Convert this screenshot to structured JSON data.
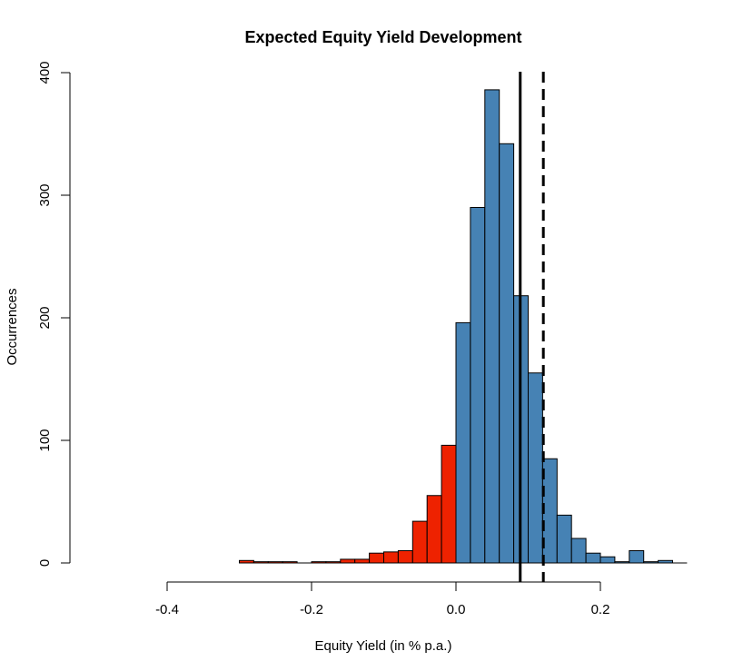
{
  "chart_data": {
    "type": "bar",
    "title": "Expected Equity Yield Development",
    "xlabel": "Equity Yield (in % p.a.)",
    "ylabel": "Occurrences",
    "xlim": [
      -0.5,
      0.33
    ],
    "ylim": [
      0,
      400
    ],
    "x_ticks": [
      -0.4,
      -0.2,
      0.0,
      0.2
    ],
    "x_tick_labels": [
      "-0.4",
      "-0.2",
      "0.0",
      "0.2"
    ],
    "y_ticks": [
      0,
      100,
      200,
      300,
      400
    ],
    "y_tick_labels": [
      "0",
      "100",
      "200",
      "300",
      "400"
    ],
    "bin_width": 0.02,
    "bins": [
      {
        "start": -0.3,
        "end": -0.28,
        "count": 2
      },
      {
        "start": -0.28,
        "end": -0.26,
        "count": 1
      },
      {
        "start": -0.26,
        "end": -0.24,
        "count": 1
      },
      {
        "start": -0.24,
        "end": -0.22,
        "count": 1
      },
      {
        "start": -0.22,
        "end": -0.2,
        "count": 0
      },
      {
        "start": -0.2,
        "end": -0.18,
        "count": 1
      },
      {
        "start": -0.18,
        "end": -0.16,
        "count": 1
      },
      {
        "start": -0.16,
        "end": -0.14,
        "count": 3
      },
      {
        "start": -0.14,
        "end": -0.12,
        "count": 3
      },
      {
        "start": -0.12,
        "end": -0.1,
        "count": 8
      },
      {
        "start": -0.1,
        "end": -0.08,
        "count": 9
      },
      {
        "start": -0.08,
        "end": -0.06,
        "count": 10
      },
      {
        "start": -0.06,
        "end": -0.04,
        "count": 34
      },
      {
        "start": -0.04,
        "end": -0.02,
        "count": 55
      },
      {
        "start": -0.02,
        "end": 0.0,
        "count": 96
      },
      {
        "start": 0.0,
        "end": 0.02,
        "count": 196
      },
      {
        "start": 0.02,
        "end": 0.04,
        "count": 290
      },
      {
        "start": 0.04,
        "end": 0.06,
        "count": 386
      },
      {
        "start": 0.06,
        "end": 0.08,
        "count": 342
      },
      {
        "start": 0.08,
        "end": 0.1,
        "count": 218
      },
      {
        "start": 0.1,
        "end": 0.12,
        "count": 155
      },
      {
        "start": 0.12,
        "end": 0.14,
        "count": 85
      },
      {
        "start": 0.14,
        "end": 0.16,
        "count": 39
      },
      {
        "start": 0.16,
        "end": 0.18,
        "count": 20
      },
      {
        "start": 0.18,
        "end": 0.2,
        "count": 8
      },
      {
        "start": 0.2,
        "end": 0.22,
        "count": 5
      },
      {
        "start": 0.22,
        "end": 0.24,
        "count": 1
      },
      {
        "start": 0.24,
        "end": 0.26,
        "count": 10
      },
      {
        "start": 0.26,
        "end": 0.28,
        "count": 1
      },
      {
        "start": 0.28,
        "end": 0.3,
        "count": 2
      },
      {
        "start": 0.3,
        "end": 0.32,
        "count": 0
      }
    ],
    "colors": {
      "negative": "#EE2200",
      "positive": "#4682B4",
      "outline": "#000000"
    },
    "reference_lines": [
      {
        "x": 0.089,
        "style": "solid"
      },
      {
        "x": 0.121,
        "style": "dashed"
      }
    ],
    "grid": false,
    "legend": "none"
  }
}
